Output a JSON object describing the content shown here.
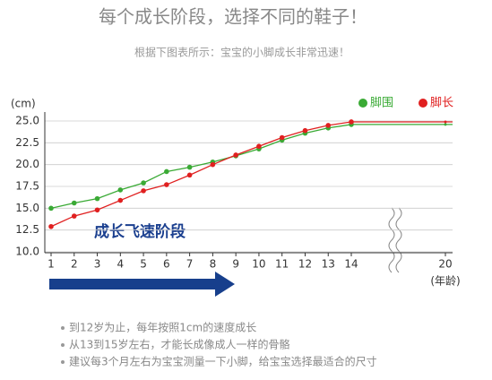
{
  "chart_data": {
    "type": "line",
    "title": "每个成长阶段，选择不同的鞋子！",
    "subtitle": "根据下图表所示：宝宝的小脚成长非常迅速！",
    "y_label": "(cm)",
    "x_label": "(年龄)",
    "categories": [
      "1",
      "2",
      "3",
      "4",
      "5",
      "6",
      "7",
      "8",
      "9",
      "10",
      "11",
      "12",
      "13",
      "14",
      "20"
    ],
    "series": [
      {
        "name": "脚围",
        "color": "#3aaa35",
        "values": [
          15.0,
          15.6,
          16.1,
          17.1,
          17.9,
          19.2,
          19.7,
          20.3,
          21.0,
          21.8,
          22.8,
          23.6,
          24.2,
          24.6,
          24.6
        ]
      },
      {
        "name": "脚长",
        "color": "#e02020",
        "values": [
          12.9,
          14.1,
          14.8,
          15.9,
          17.0,
          17.7,
          18.8,
          20.0,
          21.1,
          22.1,
          23.1,
          23.9,
          24.5,
          24.9,
          24.9
        ]
      }
    ],
    "ylim": [
      10,
      25
    ],
    "yticks": [
      {
        "value": 10,
        "label": "10.0"
      },
      {
        "value": 12.5,
        "label": "12.5"
      },
      {
        "value": 15,
        "label": "15.0"
      },
      {
        "value": 17.5,
        "label": "17.5"
      },
      {
        "value": 20,
        "label": "20.0"
      },
      {
        "value": 22.5,
        "label": "22.5"
      },
      {
        "value": 25,
        "label": "25.0"
      }
    ],
    "grid": true,
    "legend": "top-right",
    "annotation": "成长飞速阶段",
    "notes": [
      "到12岁为止，每年按照1cm的速度成长",
      "从13到15岁左右，才能长成像成人一样的骨骼",
      "建议每3个月左右为宝宝测量一下小脚，给宝宝选择最适合的尺寸"
    ]
  }
}
